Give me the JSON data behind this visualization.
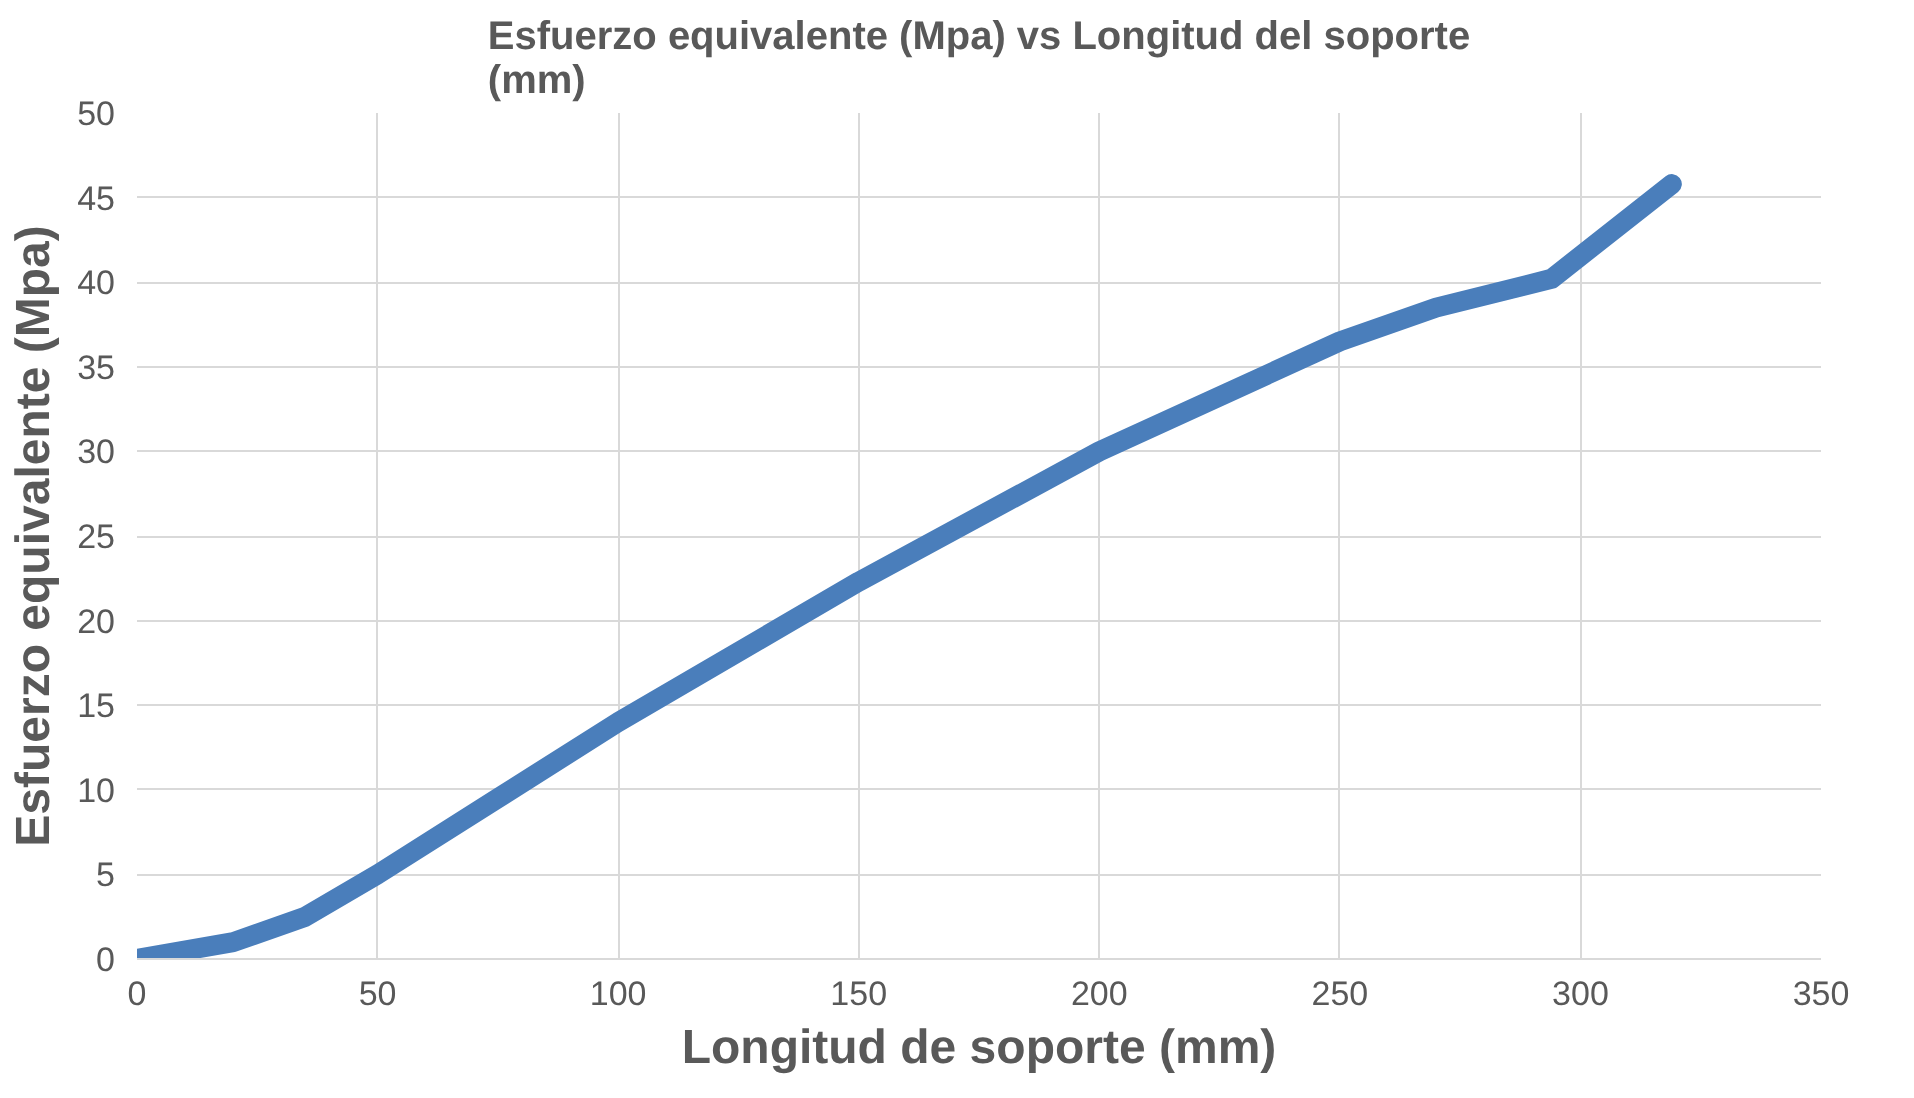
{
  "chart_data": {
    "type": "line",
    "title": "Esfuerzo equivalente (Mpa) vs Longitud del soporte (mm)",
    "xlabel": "Longitud de soporte (mm)",
    "ylabel": "Esfuerzo equivalente (Mpa)",
    "x": [
      0,
      20,
      35,
      50,
      75,
      100,
      150,
      200,
      250,
      270,
      294,
      319
    ],
    "series": [
      {
        "color": "#4a7ebb",
        "values": [
          0,
          1,
          2.5,
          5,
          9.5,
          14,
          22.3,
          30,
          36.5,
          38.5,
          40.2,
          45.8
        ]
      }
    ],
    "xlim": [
      0,
      350
    ],
    "xticks": [
      0,
      50,
      100,
      150,
      200,
      250,
      300,
      350
    ],
    "ylim": [
      0,
      50
    ],
    "yticks": [
      0,
      5,
      10,
      15,
      20,
      25,
      30,
      35,
      40,
      45,
      50
    ],
    "grid": true,
    "marker": "none",
    "line_style": "solid"
  }
}
